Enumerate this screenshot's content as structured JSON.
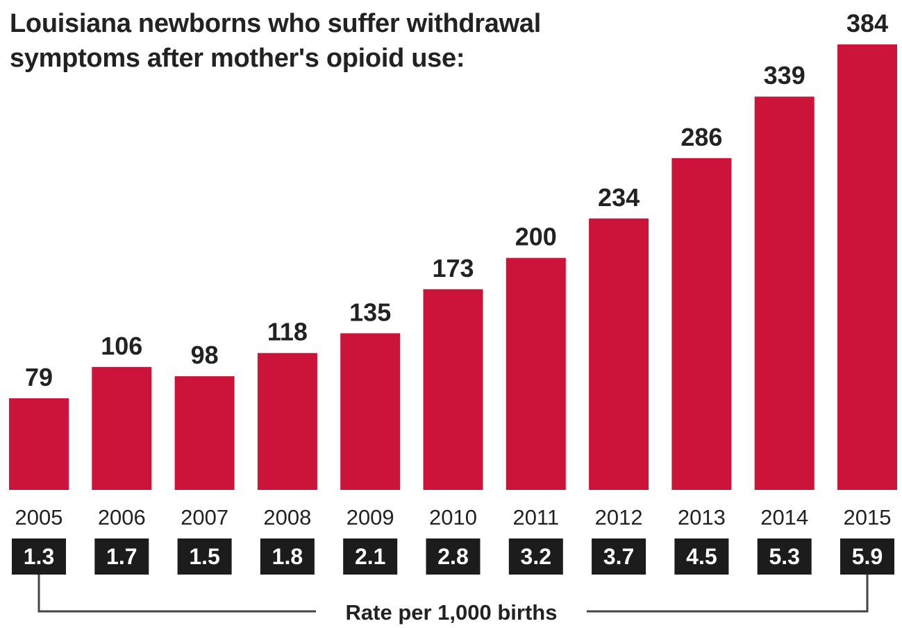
{
  "chart_data": {
    "type": "bar",
    "title_lines": [
      "Louisiana newborns who suffer withdrawal",
      "symptoms after mother's opioid use:"
    ],
    "categories": [
      "2005",
      "2006",
      "2007",
      "2008",
      "2009",
      "2010",
      "2011",
      "2012",
      "2013",
      "2014",
      "2015"
    ],
    "values": [
      79,
      106,
      98,
      118,
      135,
      173,
      200,
      234,
      286,
      339,
      384
    ],
    "rates": [
      "1.3",
      "1.7",
      "1.5",
      "1.8",
      "2.1",
      "2.8",
      "3.2",
      "3.7",
      "4.5",
      "5.3",
      "5.9"
    ],
    "rate_label": "Rate per 1,000 births",
    "ylim": [
      0,
      384
    ],
    "grid": false,
    "colors": {
      "bar": "#cc1339",
      "rate_box": "#1c1c1c",
      "rate_text": "#ffffff",
      "text": "#222222",
      "bracket": "#444444"
    }
  }
}
